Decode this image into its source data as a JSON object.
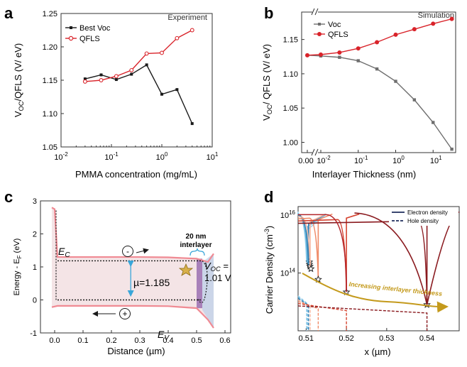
{
  "panels": {
    "a": {
      "letter": "a",
      "tag": "Experiment"
    },
    "b": {
      "letter": "b",
      "tag": "Simulation"
    },
    "c": {
      "letter": "c"
    },
    "d": {
      "letter": "d"
    }
  },
  "colors": {
    "black": "#1a1a1a",
    "red": "#d9232a",
    "gray": "#6e6e6e",
    "band_fill": "#f4e4e6",
    "band_edge": "#f08a93",
    "interlayer": "#9a6fb0",
    "cyan": "#39a6d9",
    "gold": "#c49a1c",
    "navy": "#1e2d5c"
  },
  "chart_data": [
    {
      "panel": "a",
      "type": "line",
      "xlabel": "PMMA concentration (mg/mL)",
      "ylabel": "VOC/QFLS (V/ eV)",
      "xscale": "log",
      "xlim": [
        0.01,
        10
      ],
      "ylim": [
        1.05,
        1.25
      ],
      "xticks": [
        "10-2",
        "10-1",
        "100",
        "101"
      ],
      "yticks": [
        "1.05",
        "1.10",
        "1.15",
        "1.20",
        "1.25"
      ],
      "legend_position": "top-left",
      "series": [
        {
          "name": "Best Voc",
          "marker": "square",
          "x": [
            0.03,
            0.0625,
            0.125,
            0.25,
            0.5,
            1,
            2,
            4
          ],
          "y": [
            1.152,
            1.158,
            1.151,
            1.159,
            1.173,
            1.129,
            1.136,
            1.085
          ]
        },
        {
          "name": "QFLS",
          "marker": "circle-open",
          "x": [
            0.03,
            0.0625,
            0.125,
            0.25,
            0.5,
            1,
            2,
            4
          ],
          "y": [
            1.148,
            1.15,
            1.156,
            1.165,
            1.19,
            1.191,
            1.213,
            1.225
          ]
        }
      ]
    },
    {
      "panel": "b",
      "type": "line",
      "xlabel": "Interlayer Thickness (nm)",
      "ylabel": "VOC/ QFLS (V/ eV)",
      "xscale": "log",
      "x_axis_break": true,
      "xlim": [
        0.003,
        40
      ],
      "ylim": [
        0.985,
        1.19
      ],
      "xticks": [
        "0.00",
        "10-2",
        "10-1",
        "100",
        "101"
      ],
      "yticks": [
        "1.00",
        "1.05",
        "1.10",
        "1.15"
      ],
      "legend_position": "top-left",
      "series": [
        {
          "name": "Voc",
          "marker": "square",
          "x": [
            0,
            0.01,
            0.0316,
            0.1,
            0.316,
            1,
            3.16,
            10,
            31.6
          ],
          "y": [
            1.127,
            1.126,
            1.124,
            1.119,
            1.107,
            1.089,
            1.062,
            1.029,
            0.99
          ]
        },
        {
          "name": "QFLS",
          "marker": "circle",
          "x": [
            0,
            0.01,
            0.0316,
            0.1,
            0.316,
            1,
            3.16,
            10,
            31.6
          ],
          "y": [
            1.127,
            1.128,
            1.131,
            1.137,
            1.146,
            1.157,
            1.165,
            1.173,
            1.18
          ]
        }
      ]
    },
    {
      "panel": "c",
      "type": "diagram",
      "xlabel": "Distance (µm)",
      "ylabel": "Energy - EF (eV)",
      "xlim": [
        -0.05,
        0.62
      ],
      "ylim": [
        -1,
        3
      ],
      "xticks": [
        "0.0",
        "0.1",
        "0.2",
        "0.3",
        "0.4",
        "0.5",
        "0.6"
      ],
      "yticks": [
        "-1",
        "0",
        "1",
        "2",
        "3"
      ],
      "labels": {
        "ec": "EC",
        "ev": "EV",
        "mu": "µ=1.185",
        "interlayer_size": "20 nm",
        "interlayer_word": "interlayer",
        "voc": "VOC =",
        "voc_value": "1.01 V",
        "minus": "-",
        "plus": "+"
      },
      "conduction_band": [
        [
          -0.01,
          2.8
        ],
        [
          0,
          2.75
        ],
        [
          0.01,
          1.3
        ],
        [
          0.1,
          1.3
        ],
        [
          0.2,
          1.3
        ],
        [
          0.3,
          1.3
        ],
        [
          0.4,
          1.29
        ],
        [
          0.5,
          1.25
        ],
        [
          0.54,
          1.15
        ],
        [
          0.56,
          1.4
        ]
      ],
      "valence_band": [
        [
          -0.01,
          -0.22
        ],
        [
          0.01,
          -0.18
        ],
        [
          0.1,
          -0.18
        ],
        [
          0.2,
          -0.18
        ],
        [
          0.3,
          -0.18
        ],
        [
          0.4,
          -0.19
        ],
        [
          0.5,
          -0.25
        ],
        [
          0.54,
          -0.6
        ],
        [
          0.56,
          -0.85
        ]
      ],
      "electron_qfl_ev": 1.185,
      "hole_qfl_ev": 0.0,
      "interlayer_range_um": [
        0.5,
        0.52
      ]
    },
    {
      "panel": "d",
      "type": "line",
      "xlabel": "x (µm)",
      "ylabel": "Carrier Density (cm-3)",
      "yscale": "log",
      "xlim": [
        0.508,
        0.548
      ],
      "ylim": [
        1000000000000.0,
        2e+16
      ],
      "xticks": [
        "0.51",
        "0.52",
        "0.53",
        "0.54"
      ],
      "yticks": [
        "1014",
        "1016"
      ],
      "legend_position": "top-right",
      "legend": [
        {
          "name": "Electron density",
          "style": "solid"
        },
        {
          "name": "Hole density",
          "style": "dashed"
        }
      ],
      "annotation": "Increasing interlayer thickness",
      "interlayer_edges": [
        0.5101,
        0.5103,
        0.5106,
        0.511,
        0.513,
        0.52,
        0.54
      ],
      "star_points": [
        [
          0.5101,
          240000000000000.0
        ],
        [
          0.5103,
          200000000000000.0
        ],
        [
          0.5106,
          170000000000000.0
        ],
        [
          0.511,
          140000000000000.0
        ],
        [
          0.513,
          60000000000000.0
        ],
        [
          0.52,
          22000000000000.0
        ],
        [
          0.54,
          8000000000000.0
        ]
      ]
    }
  ]
}
